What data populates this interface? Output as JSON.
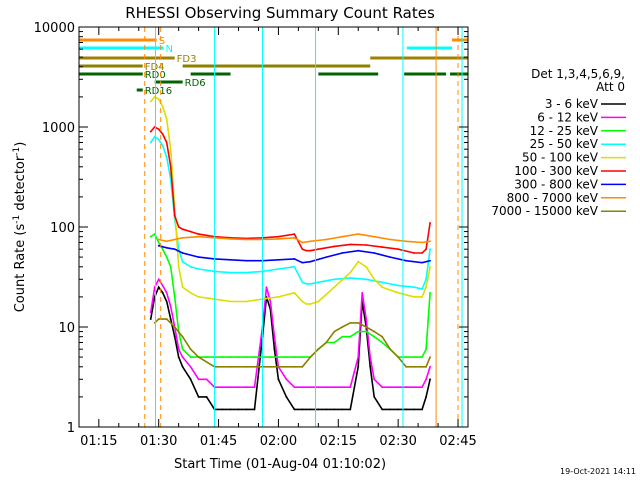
{
  "chart_data": {
    "type": "line",
    "title": "RHESSI Observing Summary Count Rates",
    "xlabel": "Start Time (01-Aug-04 01:10:02)",
    "ylabel_main": "Count Rate (s",
    "ylabel_sup1": "-1",
    "ylabel_mid": " detector",
    "ylabel_sup2": "-1",
    "ylabel_end": ")",
    "yscale": "log",
    "ylim": [
      1,
      10000
    ],
    "xlim_minutes": [
      70.03,
      167.5
    ],
    "x_tick_labels": [
      "01:15",
      "01:30",
      "01:45",
      "02:00",
      "02:15",
      "02:30",
      "02:45"
    ],
    "x_tick_minutes": [
      75,
      90,
      105,
      120,
      135,
      150,
      165
    ],
    "y_tick_labels": [
      "1",
      "10",
      "100",
      "1000",
      "10000"
    ],
    "y_tick_values": [
      1,
      10,
      100,
      1000,
      10000
    ],
    "legend_header_1": "Det 1,3,4,5,6,9,",
    "legend_header_2": "Att 0",
    "footer_date": "19-Oct-2021 14:11",
    "series": [
      {
        "name": "3 - 6 keV",
        "color": "#000000",
        "x": [
          88,
          89,
          90,
          91,
          92,
          93,
          94,
          95,
          96,
          98,
          100,
          102,
          104,
          106,
          108,
          110,
          112,
          114,
          116,
          117,
          118,
          119,
          120,
          122,
          124,
          126,
          128,
          130,
          132,
          134,
          136,
          138,
          140,
          141,
          142,
          143,
          144,
          146,
          148,
          150,
          152,
          154,
          156,
          157,
          158
        ],
        "y": [
          12,
          20,
          25,
          22,
          18,
          12,
          8,
          5,
          4,
          3,
          2,
          2,
          1.5,
          1.5,
          1.5,
          1.5,
          1.5,
          1.5,
          8,
          20,
          15,
          6,
          3,
          2,
          1.5,
          1.5,
          1.5,
          1.5,
          1.5,
          1.5,
          1.5,
          1.5,
          4,
          18,
          10,
          4,
          2,
          1.5,
          1.5,
          1.5,
          1.5,
          1.5,
          1.5,
          2,
          3
        ]
      },
      {
        "name": "6 - 12 keV",
        "color": "#ff00ff",
        "x": [
          88,
          89,
          90,
          91,
          92,
          93,
          94,
          95,
          96,
          98,
          100,
          102,
          104,
          106,
          108,
          110,
          112,
          114,
          116,
          117,
          118,
          119,
          120,
          122,
          124,
          126,
          128,
          130,
          132,
          134,
          136,
          138,
          140,
          141,
          142,
          143,
          144,
          146,
          148,
          150,
          152,
          154,
          156,
          157,
          158
        ],
        "y": [
          14,
          25,
          30,
          26,
          22,
          16,
          10,
          6,
          5,
          4,
          3,
          3,
          2.5,
          2.5,
          2.5,
          2.5,
          2.5,
          2.5,
          10,
          25,
          18,
          8,
          4,
          3,
          2.5,
          2.5,
          2.5,
          2.5,
          2.5,
          2.5,
          2.5,
          2.5,
          5,
          22,
          12,
          5,
          3,
          2.5,
          2.5,
          2.5,
          2.5,
          2.5,
          2.5,
          3,
          4
        ]
      },
      {
        "name": "12 - 25 keV",
        "color": "#00ff00",
        "x": [
          88,
          89,
          90,
          91,
          92,
          93,
          94,
          95,
          96,
          98,
          100,
          102,
          104,
          106,
          108,
          110,
          112,
          114,
          116,
          118,
          120,
          122,
          124,
          126,
          128,
          130,
          132,
          134,
          136,
          138,
          140,
          142,
          144,
          146,
          148,
          150,
          152,
          154,
          156,
          157,
          158
        ],
        "y": [
          80,
          85,
          70,
          60,
          50,
          40,
          20,
          9,
          6,
          5,
          5,
          5,
          5,
          5,
          5,
          5,
          5,
          5,
          5,
          5,
          5,
          5,
          5,
          5,
          5,
          6,
          7,
          7,
          8,
          8,
          9,
          9,
          8,
          7,
          6,
          5,
          5,
          5,
          5,
          6,
          22
        ]
      },
      {
        "name": "25 - 50 keV",
        "color": "#00ffff",
        "x": [
          88,
          89,
          90,
          91,
          92,
          93,
          94,
          95,
          96,
          98,
          100,
          104,
          108,
          112,
          116,
          120,
          124,
          126,
          127,
          128,
          130,
          134,
          138,
          142,
          146,
          150,
          154,
          156,
          157,
          158
        ],
        "y": [
          700,
          800,
          750,
          650,
          500,
          300,
          120,
          60,
          45,
          40,
          38,
          36,
          35,
          35,
          36,
          38,
          40,
          28,
          27,
          27,
          28,
          30,
          31,
          30,
          28,
          26,
          25,
          24,
          30,
          60
        ]
      },
      {
        "name": "50 - 100 keV",
        "color": "#dddd00",
        "x": [
          88,
          89,
          90,
          91,
          92,
          93,
          94,
          95,
          96,
          98,
          100,
          104,
          108,
          112,
          116,
          120,
          124,
          126,
          127,
          128,
          130,
          134,
          138,
          140,
          142,
          144,
          146,
          150,
          154,
          156,
          157,
          158
        ],
        "y": [
          1800,
          2000,
          1900,
          1600,
          1200,
          600,
          150,
          40,
          25,
          22,
          20,
          19,
          18,
          18,
          19,
          20,
          22,
          18,
          17,
          17,
          18,
          25,
          35,
          45,
          40,
          30,
          25,
          22,
          20,
          20,
          25,
          40
        ]
      },
      {
        "name": "100 - 300 keV",
        "color": "#ff0000",
        "x": [
          88,
          89,
          90,
          91,
          92,
          93,
          94,
          95,
          96,
          98,
          100,
          104,
          108,
          112,
          116,
          120,
          124,
          126,
          127,
          128,
          130,
          134,
          138,
          142,
          146,
          150,
          154,
          156,
          157,
          158
        ],
        "y": [
          900,
          1000,
          950,
          850,
          700,
          400,
          130,
          100,
          95,
          90,
          85,
          80,
          78,
          77,
          78,
          80,
          85,
          60,
          58,
          58,
          60,
          64,
          67,
          66,
          63,
          60,
          55,
          55,
          60,
          110
        ]
      },
      {
        "name": "300 - 800 keV",
        "color": "#0000ff",
        "x": [
          90,
          92,
          94,
          96,
          100,
          104,
          108,
          112,
          116,
          120,
          124,
          126,
          128,
          132,
          136,
          140,
          144,
          148,
          152,
          156,
          158
        ],
        "y": [
          65,
          62,
          60,
          55,
          50,
          48,
          47,
          46,
          46,
          47,
          48,
          44,
          45,
          50,
          55,
          58,
          55,
          50,
          46,
          44,
          46
        ]
      },
      {
        "name": "800 - 7000 keV",
        "color": "#ff8c00",
        "x": [
          90,
          92,
          94,
          96,
          100,
          104,
          108,
          112,
          116,
          120,
          124,
          126,
          128,
          132,
          136,
          140,
          144,
          148,
          152,
          156,
          158
        ],
        "y": [
          75,
          72,
          75,
          78,
          80,
          78,
          76,
          75,
          75,
          76,
          78,
          70,
          72,
          75,
          80,
          85,
          80,
          75,
          72,
          70,
          72
        ]
      },
      {
        "name": "7000 - 15000 keV",
        "color": "#8b8000",
        "x": [
          89,
          90,
          92,
          94,
          96,
          98,
          100,
          104,
          108,
          112,
          116,
          118,
          120,
          124,
          126,
          128,
          130,
          132,
          134,
          136,
          138,
          140,
          142,
          144,
          146,
          148,
          150,
          152,
          154,
          156,
          157,
          158
        ],
        "y": [
          11,
          12,
          12,
          10,
          8,
          6,
          5,
          4,
          4,
          4,
          4,
          4,
          4,
          4,
          4,
          5,
          6,
          7,
          9,
          10,
          11,
          11,
          10,
          9,
          8,
          6,
          5,
          4,
          4,
          4,
          4,
          5
        ]
      }
    ],
    "state_bars": [
      {
        "label": "S",
        "color": "#ff8c00",
        "segments": [
          [
            70.03,
            89.5
          ],
          [
            163.5,
            167.5
          ]
        ]
      },
      {
        "label": "N",
        "color": "#00ffff",
        "segments": [
          [
            70.03,
            91.2
          ],
          [
            152.2,
            163.5
          ]
        ]
      },
      {
        "label": "FD3",
        "color": "#a08000",
        "segments": [
          [
            70.03,
            94
          ],
          [
            143,
            167.5
          ]
        ]
      },
      {
        "label": "FD4",
        "color": "#8b8000",
        "segments": [
          [
            70.03,
            86
          ],
          [
            96,
            143
          ]
        ]
      },
      {
        "label": "RD0",
        "color": "#006400",
        "segments": [
          [
            70.03,
            86
          ],
          [
            98,
            108
          ],
          [
            130,
            145
          ],
          [
            151.5,
            162
          ],
          [
            163,
            167.5
          ]
        ]
      },
      {
        "label": "RD6",
        "color": "#006400",
        "segments": [
          [
            89,
            96
          ]
        ]
      },
      {
        "label": "RD16",
        "color": "#006400",
        "segments": [
          [
            84.5,
            86
          ]
        ]
      }
    ],
    "vlines_dashed_orange": [
      86.5,
      90.5,
      165
    ],
    "vlines_solid_cyan": [
      70.03,
      89.2,
      104,
      116,
      129.3,
      151.2,
      166
    ],
    "vlines_solid_orange": [
      159.5
    ],
    "grid": false,
    "legend_position": "right"
  }
}
